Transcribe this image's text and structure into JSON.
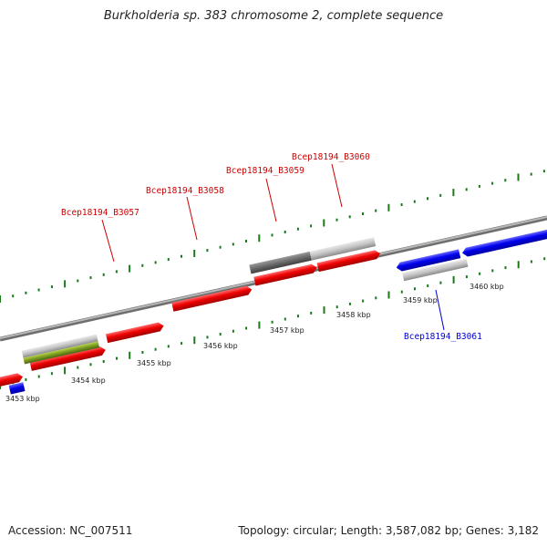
{
  "header": {
    "title": "Burkholderia sp. 383 chromosome 2, complete sequence"
  },
  "footer": {
    "accession": "Accession: NC_007511",
    "summary": "Topology: circular; Length: 3,587,082 bp; Genes: 3,182"
  },
  "scale": {
    "unit": "kbp",
    "ticks": [
      "3453 kbp",
      "3454 kbp",
      "3455 kbp",
      "3456 kbp",
      "3457 kbp",
      "3458 kbp",
      "3459 kbp",
      "3460 kbp"
    ]
  },
  "genes": [
    {
      "name": "Bcep18194_B3057",
      "strand": "plus",
      "color": "#cc0000"
    },
    {
      "name": "Bcep18194_B3058",
      "strand": "plus",
      "color": "#cc0000"
    },
    {
      "name": "Bcep18194_B3059",
      "strand": "plus",
      "color": "#cc0000"
    },
    {
      "name": "Bcep18194_B3060",
      "strand": "plus",
      "color": "#cc0000"
    },
    {
      "name": "Bcep18194_B3061",
      "strand": "minus",
      "color": "#0000cc"
    }
  ],
  "colors": {
    "cds_forward": "#ee0000",
    "cds_reverse": "#0000ee",
    "feature_gray": "#c0c0c0",
    "feature_dark": "#707070",
    "feature_olive": "#7a9a20",
    "tick": "#1a7a1a",
    "backbone": "#909090"
  }
}
